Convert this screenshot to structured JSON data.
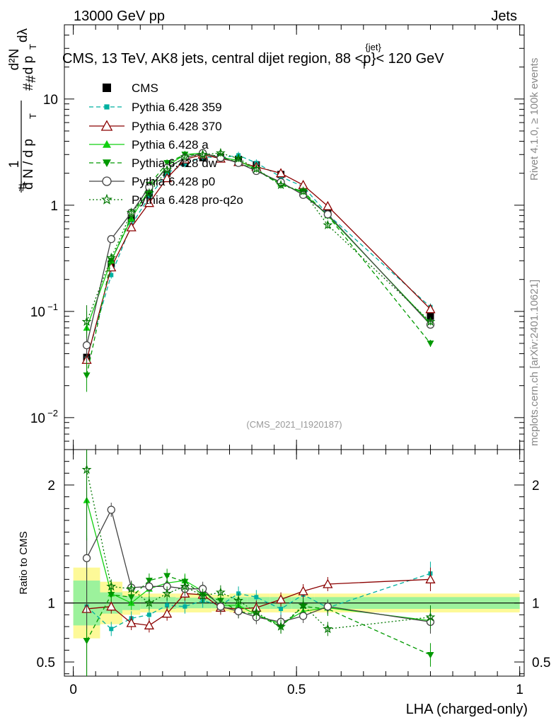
{
  "header": {
    "energy_label": "13000 GeV pp",
    "category_label": "Jets",
    "title": "CMS, 13 TeV, AK8 jets, central dijet region, 88 <p",
    "title_super": "{jet}",
    "title_sub": "T",
    "title_end": "}< 120 GeV",
    "analysis_id": "(CMS_2021_I1920187)",
    "side_rivet": "Rivet 4.1.0, ≥ 100k events",
    "side_mcplots": "mcplots.cern.ch [arXiv:2401.10621]"
  },
  "axes": {
    "xlabel": "LHA (charged-only)",
    "ratio_ylabel": "Ratio to CMS",
    "ylabel_parts": [
      "#",
      "1",
      "d N / d p",
      "T",
      "#",
      "d p",
      "T",
      "d²N",
      "#",
      "dλ"
    ],
    "main_yticks": [
      {
        "base": "10",
        "exp": "−2",
        "value": 0.01
      },
      {
        "base": "10",
        "exp": "−1",
        "value": 0.1
      },
      {
        "base": "1",
        "exp": "",
        "value": 1
      },
      {
        "base": "10",
        "exp": "",
        "value": 10
      }
    ],
    "ratio_yticks": [
      {
        "label": "0.5",
        "value": 0.5
      },
      {
        "label": "1",
        "value": 1
      },
      {
        "label": "2",
        "value": 2
      }
    ],
    "xticks": [
      {
        "label": "0",
        "value": 0
      },
      {
        "label": "0.5",
        "value": 0.5
      },
      {
        "label": "1",
        "value": 1
      }
    ]
  },
  "chart_data": {
    "type": "scatter",
    "title": "CMS, 13 TeV, AK8 jets, central dijet region, 88 < p_T^{jet} < 120 GeV",
    "xlabel": "LHA (charged-only)",
    "ylabel": "1/(dN/dp_T) d2N/(dp_T dlambda)",
    "xlim": [
      -0.02,
      1.01
    ],
    "ylim": [
      0.005,
      50
    ],
    "yscale": "log",
    "ratio_ylim": [
      0.38,
      2.3
    ],
    "x": [
      0.03,
      0.085,
      0.13,
      0.17,
      0.21,
      0.25,
      0.29,
      0.33,
      0.37,
      0.41,
      0.465,
      0.515,
      0.57,
      0.8
    ],
    "legend": [
      "CMS",
      "Pythia 6.428 359",
      "Pythia 6.428 370",
      "Pythia 6.428 a",
      "Pythia 6.428 dw",
      "Pythia 6.428 p0",
      "Pythia 6.428 pro-q2o"
    ],
    "series": [
      {
        "name": "CMS",
        "color": "#000000",
        "marker": "square",
        "style": "none",
        "values": [
          0.037,
          0.28,
          0.75,
          1.3,
          2.0,
          2.5,
          2.8,
          2.85,
          2.7,
          2.4,
          1.95,
          1.4,
          0.85,
          0.09
        ]
      },
      {
        "name": "Pythia 6.428 359",
        "color": "#00b0a0",
        "marker": "smallsquare",
        "style": "dashed",
        "values": [
          0.036,
          0.22,
          0.65,
          1.2,
          2.0,
          2.45,
          2.85,
          2.8,
          2.95,
          2.5,
          1.85,
          1.5,
          0.82,
          0.11
        ]
      },
      {
        "name": "Pythia 6.428 370",
        "color": "#8b0000",
        "marker": "triangle-open",
        "style": "solid",
        "values": [
          0.035,
          0.26,
          0.62,
          1.05,
          1.8,
          2.7,
          3.0,
          2.75,
          2.55,
          2.3,
          2.0,
          1.55,
          0.98,
          0.105
        ]
      },
      {
        "name": "Pythia 6.428 a",
        "color": "#10d010",
        "marker": "triangle",
        "style": "solid",
        "values": [
          0.07,
          0.3,
          0.75,
          1.4,
          2.35,
          3.0,
          3.1,
          2.8,
          2.65,
          2.15,
          1.6,
          1.3,
          0.8,
          0.077
        ]
      },
      {
        "name": "Pythia 6.428 dw",
        "color": "#009900",
        "marker": "triangle-down",
        "style": "dashed",
        "values": [
          0.025,
          0.3,
          0.78,
          1.55,
          2.5,
          3.0,
          3.0,
          2.9,
          2.5,
          2.15,
          1.55,
          1.35,
          0.8,
          0.05
        ]
      },
      {
        "name": "Pythia 6.428 p0",
        "color": "#444444",
        "marker": "circle-open",
        "style": "solid",
        "values": [
          0.048,
          0.48,
          0.85,
          1.48,
          2.25,
          2.8,
          3.1,
          2.8,
          2.5,
          2.1,
          1.65,
          1.25,
          0.82,
          0.075
        ]
      },
      {
        "name": "Pythia 6.428 pro-q2o",
        "color": "#007700",
        "marker": "star",
        "style": "dotted",
        "values": [
          0.08,
          0.32,
          0.85,
          1.3,
          2.15,
          2.85,
          3.0,
          3.1,
          2.75,
          2.2,
          1.55,
          1.35,
          0.65,
          0.08
        ]
      }
    ],
    "ratio_series": [
      {
        "name": "Pythia 6.428 359",
        "values": [
          0.97,
          0.78,
          0.87,
          0.9,
          0.98,
          0.97,
          1.02,
          0.98,
          1.08,
          1.05,
          0.95,
          1.07,
          0.96,
          1.25
        ]
      },
      {
        "name": "Pythia 6.428 370",
        "values": [
          0.95,
          0.97,
          0.83,
          0.81,
          0.91,
          1.08,
          1.07,
          0.96,
          0.95,
          0.96,
          1.03,
          1.1,
          1.16,
          1.2
        ]
      },
      {
        "name": "Pythia 6.428 a",
        "values": [
          1.87,
          1.08,
          1.0,
          1.12,
          1.17,
          1.19,
          1.1,
          0.98,
          0.98,
          0.9,
          0.82,
          0.93,
          0.96,
          0.85
        ]
      },
      {
        "name": "Pythia 6.428 dw",
        "values": [
          0.68,
          1.07,
          1.05,
          1.19,
          1.23,
          1.18,
          1.07,
          1.02,
          0.93,
          0.9,
          0.8,
          0.97,
          0.95,
          0.56
        ]
      },
      {
        "name": "Pythia 6.428 p0",
        "values": [
          1.38,
          1.79,
          1.13,
          1.14,
          1.14,
          1.12,
          1.12,
          0.97,
          0.93,
          0.88,
          0.84,
          0.89,
          0.97,
          0.84
        ]
      },
      {
        "name": "Pythia 6.428 pro-q2o",
        "values": [
          2.13,
          1.14,
          1.12,
          1.0,
          1.08,
          1.14,
          1.06,
          1.09,
          1.02,
          0.92,
          0.8,
          0.98,
          0.78,
          0.88
        ]
      }
    ],
    "uncertainty_bands": {
      "x_edges": [
        0,
        0.06,
        0.11,
        0.15,
        0.19,
        0.23,
        0.27,
        0.31,
        0.35,
        0.39,
        0.44,
        0.49,
        0.54,
        1.0
      ],
      "inner": [
        0.19,
        0.09,
        0.06,
        0.05,
        0.05,
        0.045,
        0.045,
        0.045,
        0.05,
        0.05,
        0.05,
        0.05,
        0.05
      ],
      "outer": [
        0.3,
        0.18,
        0.1,
        0.08,
        0.08,
        0.08,
        0.08,
        0.07,
        0.08,
        0.08,
        0.08,
        0.08,
        0.08
      ]
    }
  }
}
